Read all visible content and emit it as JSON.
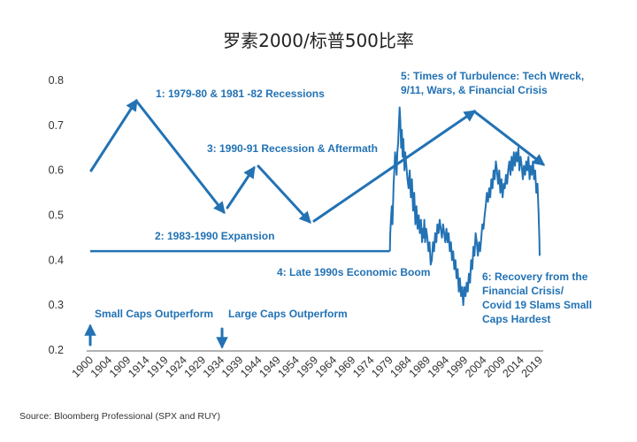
{
  "chart_data": {
    "type": "line",
    "title": "罗素2000/标普500比率",
    "xlabel": "",
    "ylabel": "",
    "ylim": [
      0.2,
      0.8
    ],
    "y_ticks": [
      "0.2",
      "0.3",
      "0.4",
      "0.5",
      "0.6",
      "0.7",
      "0.8"
    ],
    "x_ticks": [
      "1900",
      "1904",
      "1909",
      "1914",
      "1919",
      "1924",
      "1929",
      "1934",
      "1939",
      "1944",
      "1949",
      "1954",
      "1959",
      "1964",
      "1969",
      "1974",
      "1979",
      "1984",
      "1989",
      "1994",
      "1999",
      "2004",
      "2009",
      "2014",
      "2019"
    ],
    "grid": false,
    "legend": false,
    "colors": {
      "series": "#2272b4",
      "text": "#333333"
    },
    "series": [
      {
        "name": "",
        "x": [
          1979.0,
          1979.1,
          1979.3,
          1979.5,
          1979.7,
          1979.9,
          1980.0,
          1980.2,
          1980.4,
          1980.6,
          1980.8,
          1981.0,
          1981.2,
          1981.4,
          1981.6,
          1981.8,
          1982.0,
          1982.2,
          1982.4,
          1982.6,
          1982.9,
          1983.1,
          1983.4,
          1983.7,
          1984.0,
          1984.3,
          1984.6,
          1984.9,
          1985.2,
          1985.5,
          1985.8,
          1986.1,
          1986.4,
          1986.7,
          1987.0,
          1987.3,
          1987.6,
          1987.8,
          1988.0,
          1988.2,
          1988.4,
          1988.7,
          1989.0,
          1989.3,
          1989.6,
          1989.9,
          1990.2,
          1990.5,
          1990.8,
          1991.1,
          1991.4,
          1991.7,
          1992.0,
          1992.3,
          1992.6,
          1992.9,
          1993.2,
          1993.5,
          1993.8,
          1994.1,
          1994.4,
          1994.7,
          1995.0,
          1995.3,
          1995.6,
          1995.9,
          1996.2,
          1996.5,
          1996.8,
          1997.1,
          1997.4,
          1997.7,
          1998.0,
          1998.3,
          1998.6,
          1998.9,
          1999.2,
          1999.5,
          1999.8,
          2000.1,
          2000.4,
          2000.7,
          2001.0,
          2001.3,
          2001.6,
          2001.9,
          2002.2,
          2002.5,
          2002.8,
          2003.1,
          2003.4,
          2003.7,
          2004.0,
          2004.3,
          2004.6,
          2004.9,
          2005.2,
          2005.5,
          2005.8,
          2006.1,
          2006.4,
          2006.7,
          2007.0,
          2007.3,
          2007.6,
          2007.9,
          2008.2,
          2008.5,
          2008.8,
          2009.1,
          2009.4,
          2009.7,
          2010.0,
          2010.3,
          2010.6,
          2010.9,
          2011.2,
          2011.5,
          2011.8,
          2012.1,
          2012.4,
          2012.7,
          2013.0,
          2013.3,
          2013.6,
          2013.9,
          2014.2,
          2014.5,
          2014.8,
          2015.1,
          2015.4,
          2015.7,
          2016.0,
          2016.3,
          2016.6,
          2016.9,
          2017.2,
          2017.5,
          2017.8,
          2018.1,
          2018.4,
          2018.7,
          2018.9,
          2019.0
        ],
        "values": [
          0.42,
          0.46,
          0.49,
          0.52,
          0.48,
          0.54,
          0.57,
          0.6,
          0.64,
          0.62,
          0.59,
          0.64,
          0.66,
          0.7,
          0.74,
          0.71,
          0.65,
          0.69,
          0.63,
          0.67,
          0.6,
          0.64,
          0.61,
          0.58,
          0.56,
          0.6,
          0.54,
          0.58,
          0.51,
          0.55,
          0.48,
          0.52,
          0.47,
          0.5,
          0.46,
          0.49,
          0.44,
          0.47,
          0.45,
          0.49,
          0.44,
          0.47,
          0.45,
          0.42,
          0.44,
          0.39,
          0.4,
          0.44,
          0.42,
          0.46,
          0.44,
          0.48,
          0.46,
          0.49,
          0.47,
          0.45,
          0.48,
          0.46,
          0.44,
          0.47,
          0.44,
          0.46,
          0.42,
          0.44,
          0.4,
          0.42,
          0.38,
          0.4,
          0.36,
          0.38,
          0.33,
          0.36,
          0.32,
          0.34,
          0.3,
          0.34,
          0.32,
          0.35,
          0.33,
          0.37,
          0.35,
          0.4,
          0.38,
          0.43,
          0.41,
          0.46,
          0.44,
          0.41,
          0.44,
          0.42,
          0.45,
          0.48,
          0.47,
          0.5,
          0.52,
          0.55,
          0.53,
          0.56,
          0.54,
          0.58,
          0.56,
          0.6,
          0.58,
          0.62,
          0.6,
          0.57,
          0.6,
          0.55,
          0.58,
          0.54,
          0.57,
          0.56,
          0.59,
          0.57,
          0.6,
          0.62,
          0.59,
          0.63,
          0.6,
          0.64,
          0.61,
          0.64,
          0.62,
          0.65,
          0.6,
          0.63,
          0.61,
          0.58,
          0.61,
          0.59,
          0.62,
          0.6,
          0.63,
          0.58,
          0.61,
          0.59,
          0.62,
          0.58,
          0.6,
          0.55,
          0.57,
          0.51,
          0.45,
          0.41
        ]
      }
    ],
    "flat_line": {
      "x": [
        1900,
        1979
      ],
      "value": 0.42
    },
    "annotations": [
      {
        "text": "1: 1979-80 & 1981 -82 Recessions"
      },
      {
        "text": "2: 1983-1990 Expansion"
      },
      {
        "text": "3: 1990-91 Recession & Aftermath"
      },
      {
        "text": "4: Late 1990s Economic Boom"
      },
      {
        "text": "5: Times of Turbulence: Tech Wreck,"
      },
      {
        "text": "9/11, Wars, & Financial Crisis"
      },
      {
        "text": "6: Recovery from the"
      },
      {
        "text": "Financial Crisis/"
      },
      {
        "text": "Covid 19 Slams Small"
      },
      {
        "text": "Caps Hardest"
      },
      {
        "text": "Small Caps Outperform"
      },
      {
        "text": "Large Caps Outperform"
      }
    ],
    "source": "Source: Bloomberg Professional (SPX and RUY)"
  }
}
